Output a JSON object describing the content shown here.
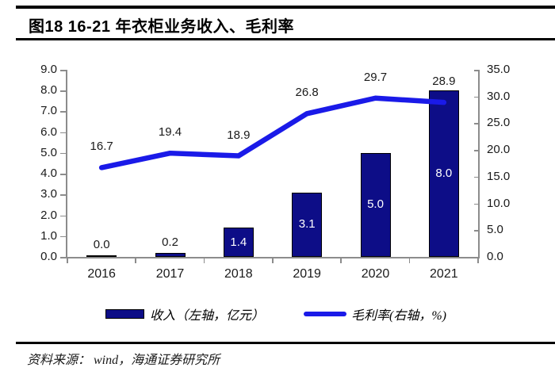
{
  "header": {
    "title": "图18 16-21 年衣柜业务收入、毛利率"
  },
  "chart_data": {
    "type": "bar+line",
    "categories": [
      "2016",
      "2017",
      "2018",
      "2019",
      "2020",
      "2021"
    ],
    "series": [
      {
        "name": "收入（左轴，亿元）",
        "type": "bar",
        "axis": "left",
        "values": [
          0.0,
          0.2,
          1.4,
          3.1,
          5.0,
          8.0
        ],
        "color": "#0d0d87",
        "inside_label_color": "#ffffff",
        "outside_label_color": "#1a1a1a"
      },
      {
        "name": "毛利率(右轴，%)",
        "type": "line",
        "axis": "right",
        "values": [
          16.7,
          19.4,
          18.9,
          26.8,
          29.7,
          28.9
        ],
        "color": "#1a1ae8"
      }
    ],
    "left_axis": {
      "min": 0,
      "max": 9,
      "step": 1,
      "tick_format_decimals": 1
    },
    "right_axis": {
      "min": 0,
      "max": 35,
      "step": 5,
      "tick_format_decimals": 1
    },
    "grid": false,
    "legend_position": "bottom"
  },
  "footer": {
    "source": "资料来源： wind，海通证券研究所"
  },
  "colors": {
    "bar": "#0d0d87",
    "line": "#1a1ae8",
    "axis": "#8c8c8c",
    "text": "#1a1a1a"
  }
}
